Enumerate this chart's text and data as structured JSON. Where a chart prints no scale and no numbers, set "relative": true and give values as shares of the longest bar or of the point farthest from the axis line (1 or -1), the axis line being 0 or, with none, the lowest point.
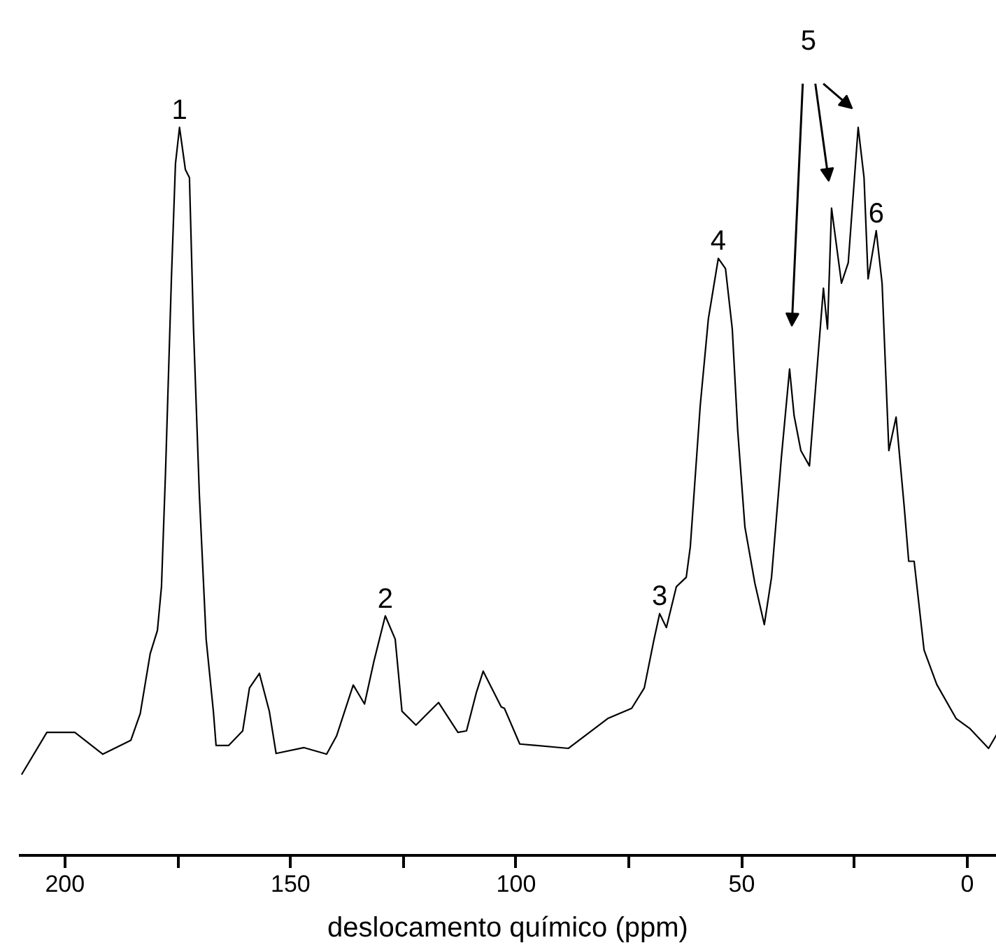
{
  "chart_data": {
    "type": "line",
    "relative": true,
    "xlabel": "deslocamento químico (ppm)",
    "xlim": [
      210.2,
      -6.5
    ],
    "xticks": [
      200,
      {
        "value": 175,
        "label": null
      },
      150,
      {
        "value": 125,
        "label": null
      },
      100,
      {
        "value": 75,
        "label": null
      },
      50,
      {
        "value": 25,
        "label": null
      },
      0
    ],
    "grid": false,
    "marker": "none",
    "line_style": "solid",
    "x": [
      209.6,
      204.0,
      197.8,
      191.6,
      185.4,
      183.3,
      181.1,
      179.5,
      178.6,
      177.7,
      176.4,
      175.5,
      174.6,
      173.3,
      172.4,
      171.5,
      170.2,
      168.7,
      167.1,
      166.5,
      163.7,
      160.6,
      159.1,
      156.9,
      154.7,
      153.2,
      147.0,
      142.0,
      139.8,
      136.1,
      133.6,
      131.5,
      129.0,
      126.8,
      125.3,
      122.2,
      117.2,
      112.9,
      111.0,
      108.8,
      107.3,
      103.3,
      102.6,
      99.2,
      88.4,
      79.7,
      74.4,
      71.6,
      69.5,
      68.2,
      66.7,
      64.5,
      62.3,
      61.4,
      59.2,
      57.4,
      55.2,
      53.6,
      52.1,
      50.9,
      49.3,
      47.1,
      45.0,
      43.4,
      41.2,
      39.4,
      38.4,
      36.9,
      35.0,
      32.9,
      31.9,
      31.0,
      30.1,
      28.5,
      27.9,
      26.4,
      24.2,
      22.9,
      22.0,
      20.2,
      18.9,
      17.4,
      15.8,
      14.0,
      13.0,
      11.8,
      9.6,
      6.8,
      2.5,
      -0.6,
      -4.7,
      -6.5
    ],
    "series": [
      {
        "color": "#000000",
        "values": [
          0.111,
          0.169,
          0.169,
          0.139,
          0.158,
          0.195,
          0.277,
          0.309,
          0.369,
          0.527,
          0.792,
          0.95,
          1.0,
          0.942,
          0.931,
          0.724,
          0.495,
          0.297,
          0.198,
          0.151,
          0.151,
          0.171,
          0.23,
          0.25,
          0.198,
          0.14,
          0.148,
          0.139,
          0.164,
          0.234,
          0.208,
          0.267,
          0.329,
          0.297,
          0.198,
          0.179,
          0.21,
          0.169,
          0.171,
          0.224,
          0.253,
          0.204,
          0.202,
          0.153,
          0.147,
          0.188,
          0.202,
          0.23,
          0.295,
          0.332,
          0.313,
          0.369,
          0.382,
          0.424,
          0.618,
          0.737,
          0.82,
          0.806,
          0.723,
          0.584,
          0.451,
          0.374,
          0.317,
          0.382,
          0.548,
          0.668,
          0.604,
          0.556,
          0.535,
          0.701,
          0.779,
          0.723,
          0.889,
          0.814,
          0.786,
          0.814,
          1.0,
          0.931,
          0.792,
          0.858,
          0.786,
          0.556,
          0.602,
          0.479,
          0.404,
          0.404,
          0.282,
          0.235,
          0.188,
          0.174,
          0.147,
          0.166
        ]
      }
    ],
    "annotations": [
      {
        "text": "1",
        "x": 174.6,
        "y": 1.0
      },
      {
        "text": "2",
        "x": 129.0,
        "y": 0.329
      },
      {
        "text": "3",
        "x": 68.2,
        "y": 0.332
      },
      {
        "text": "4",
        "x": 55.2,
        "y": 0.82
      },
      "5",
      {
        "text": "6",
        "x": 20.2,
        "y": 0.858
      }
    ]
  }
}
